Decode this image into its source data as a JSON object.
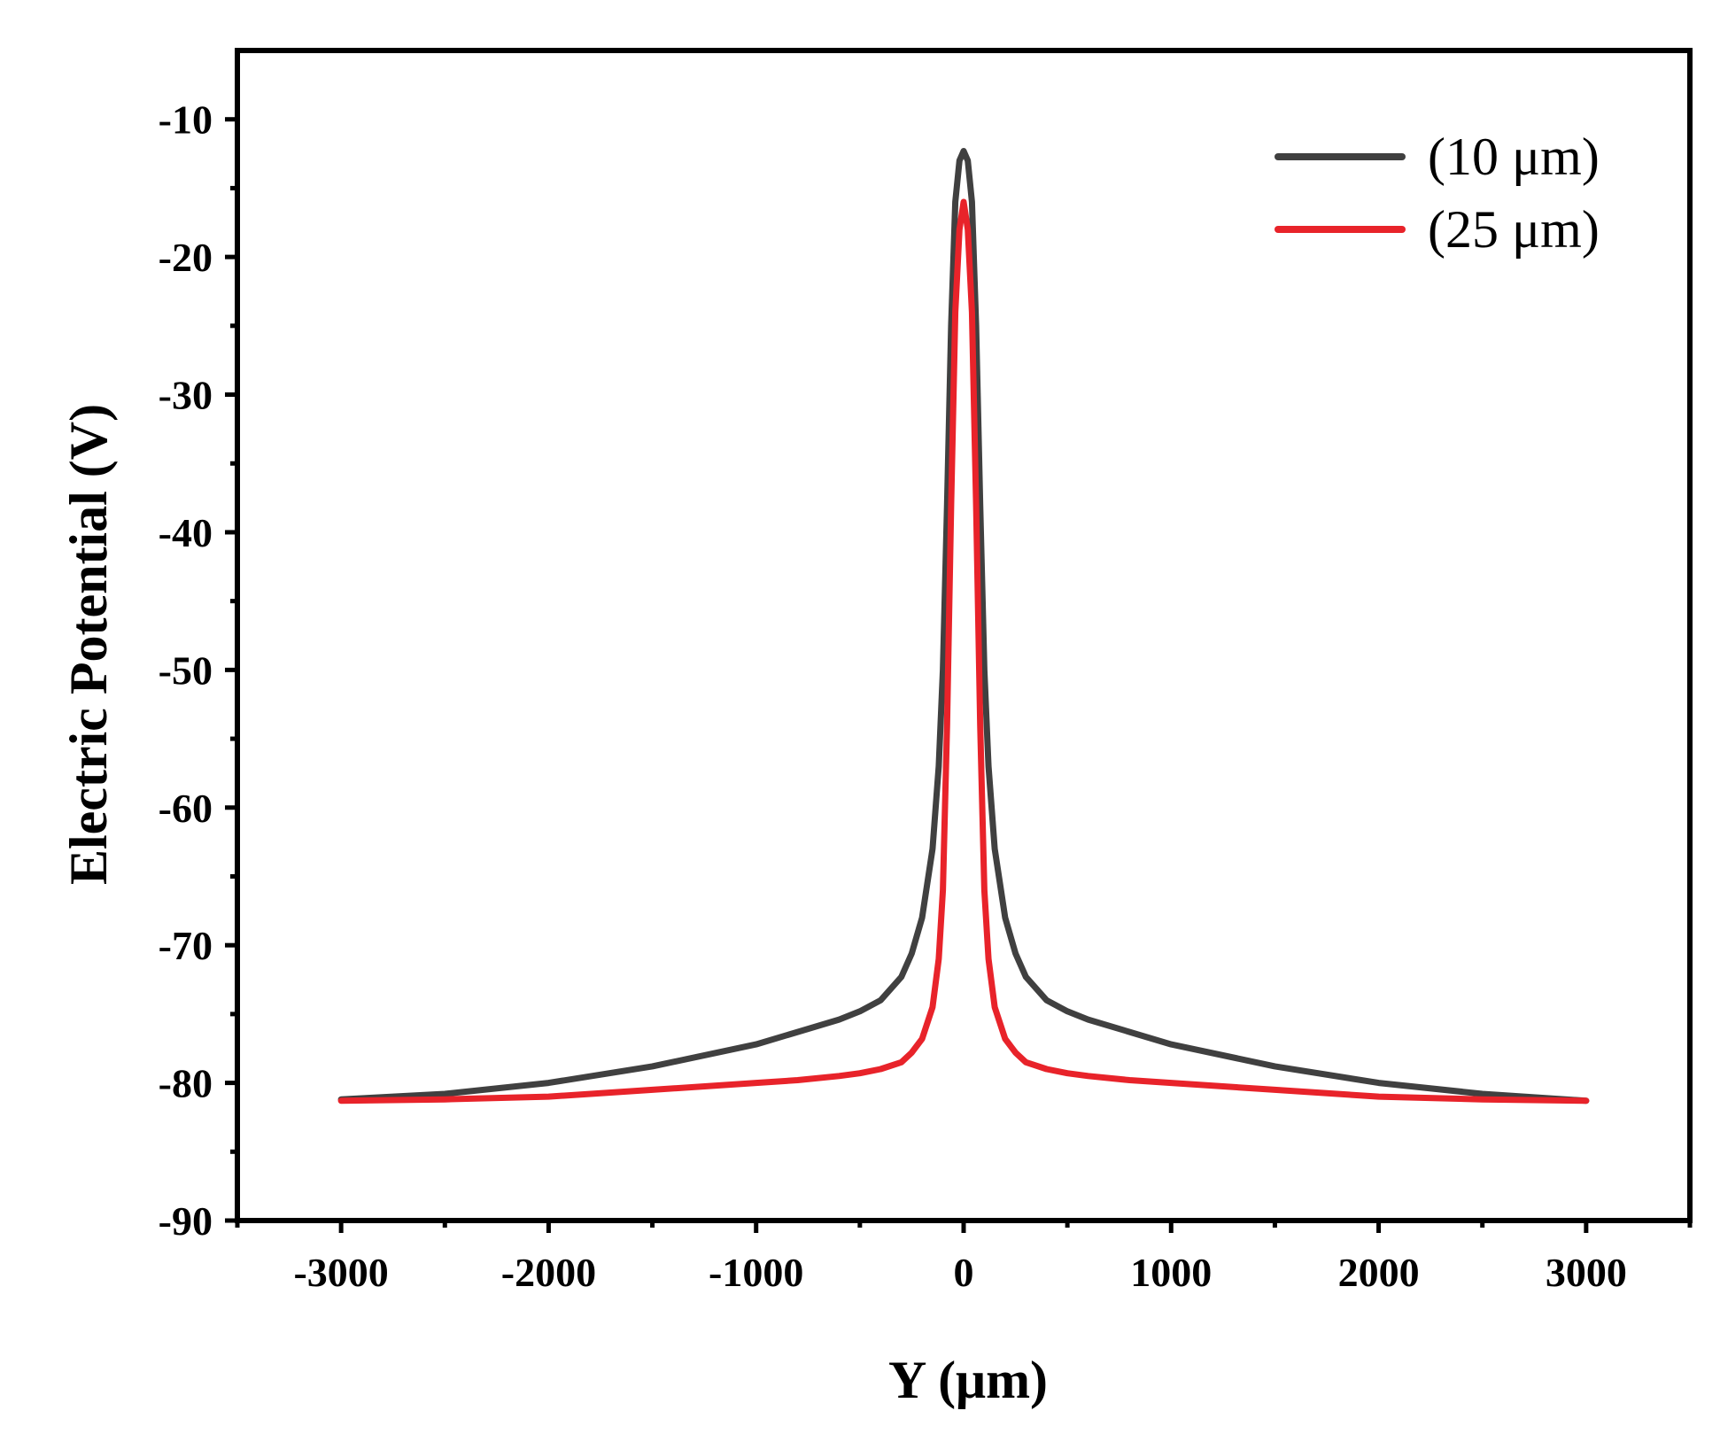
{
  "chart_data": {
    "type": "line",
    "title": "",
    "xlabel": "Y (μm)",
    "ylabel": "Electric Potential (V)",
    "xlim": [
      -3500,
      3500
    ],
    "ylim": [
      -90,
      -5
    ],
    "xticks": [
      -3000,
      -2000,
      -1000,
      0,
      1000,
      2000,
      3000
    ],
    "yticks": [
      -90,
      -80,
      -70,
      -60,
      -50,
      -40,
      -30,
      -20,
      -10
    ],
    "xtick_labels": [
      "-3000",
      "-2000",
      "-1000",
      "0",
      "1000",
      "2000",
      "3000"
    ],
    "ytick_labels": [
      "-90",
      "-80",
      "-70",
      "-60",
      "-50",
      "-40",
      "-30",
      "-20",
      "-10"
    ],
    "grid": false,
    "legend_position": "top-right",
    "series": [
      {
        "name": "(10 μm)",
        "color": "#404040",
        "x": [
          -3000,
          -2500,
          -2000,
          -1500,
          -1000,
          -800,
          -600,
          -500,
          -400,
          -300,
          -250,
          -200,
          -150,
          -120,
          -100,
          -80,
          -60,
          -40,
          -20,
          0,
          20,
          40,
          60,
          80,
          100,
          120,
          150,
          200,
          250,
          300,
          400,
          500,
          600,
          800,
          1000,
          1500,
          2000,
          2500,
          3000
        ],
        "y": [
          -81.2,
          -80.8,
          -80.0,
          -78.8,
          -77.2,
          -76.3,
          -75.4,
          -74.8,
          -74.0,
          -72.3,
          -70.6,
          -68.0,
          -63.0,
          -57.0,
          -50.0,
          -38.0,
          -25.0,
          -16.0,
          -13.0,
          -12.3,
          -13.0,
          -16.0,
          -25.0,
          -38.0,
          -50.0,
          -57.0,
          -63.0,
          -68.0,
          -70.6,
          -72.3,
          -74.0,
          -74.8,
          -75.4,
          -76.3,
          -77.2,
          -78.8,
          -80.0,
          -80.8,
          -81.3
        ]
      },
      {
        "name": "(25 μm)",
        "color": "#e8232a",
        "x": [
          -3000,
          -2500,
          -2000,
          -1500,
          -1000,
          -800,
          -600,
          -500,
          -400,
          -300,
          -250,
          -200,
          -150,
          -120,
          -100,
          -80,
          -60,
          -40,
          -20,
          0,
          20,
          40,
          60,
          80,
          100,
          120,
          150,
          200,
          250,
          300,
          400,
          500,
          600,
          800,
          1000,
          1500,
          2000,
          2500,
          3000
        ],
        "y": [
          -81.3,
          -81.2,
          -81.0,
          -80.5,
          -80.0,
          -79.8,
          -79.5,
          -79.3,
          -79.0,
          -78.5,
          -77.8,
          -76.8,
          -74.5,
          -71.0,
          -66.0,
          -54.0,
          -38.0,
          -24.0,
          -18.0,
          -16.0,
          -18.0,
          -24.0,
          -38.0,
          -54.0,
          -66.0,
          -71.0,
          -74.5,
          -76.8,
          -77.8,
          -78.5,
          -79.0,
          -79.3,
          -79.5,
          -79.8,
          -80.0,
          -80.5,
          -81.0,
          -81.2,
          -81.3
        ]
      }
    ]
  }
}
